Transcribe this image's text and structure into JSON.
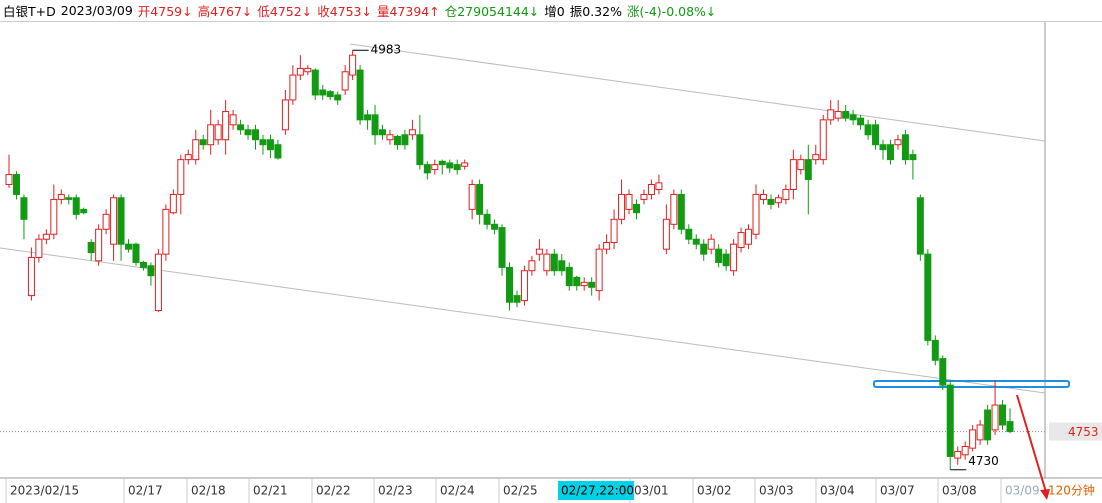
{
  "header": {
    "items": [
      {
        "text": "白银T+D",
        "color": "#000000"
      },
      {
        "text": "2023/03/09",
        "color": "#000000"
      },
      {
        "text": "开4759↓",
        "color": "#e02020"
      },
      {
        "text": "高4767↓",
        "color": "#e02020"
      },
      {
        "text": "低4752↓",
        "color": "#e02020"
      },
      {
        "text": "收4753↓",
        "color": "#e02020"
      },
      {
        "text": "量47394↑",
        "color": "#e02020"
      },
      {
        "text": "仓279054144↓",
        "color": "#129a12"
      },
      {
        "text": "增0",
        "color": "#000000"
      },
      {
        "text": "振0.32%",
        "color": "#000000"
      },
      {
        "text": "涨(-4)-0.08%↓",
        "color": "#129a12"
      }
    ]
  },
  "chart_data": {
    "type": "candlestick",
    "up_color": "#e02020",
    "down_color": "#129a12",
    "ylim": [
      4725,
      5000
    ],
    "x_labels": [
      "2023/02/15",
      "02/17",
      "02/18",
      "02/21",
      "02/22",
      "02/23",
      "02/24",
      "02/25",
      "03/01",
      "03/02",
      "03/03",
      "03/04",
      "03/07",
      "03/08",
      "03/09"
    ],
    "cursor_label": "02/27,22:00",
    "period": "120分钟",
    "high_label": "4983",
    "low_label": "4730",
    "last_price": 4753,
    "open": [
      4902,
      4908,
      4894,
      4835,
      4858,
      4869,
      4872,
      4893,
      4894,
      4894,
      4887,
      4867,
      4856,
      4875,
      4866,
      4894,
      4866,
      4866,
      4855,
      4853,
      4826,
      4860,
      4885,
      4896,
      4917,
      4917,
      4929,
      4926,
      4929,
      4929,
      4938,
      4938,
      4935,
      4935,
      4929,
      4929,
      4926,
      4935,
      4953,
      4968,
      4970,
      4971,
      4959,
      4958,
      4956,
      4959,
      4968,
      4971,
      4944,
      4944,
      4935,
      4929,
      4931,
      4932,
      4932,
      4932,
      4914,
      4911,
      4916,
      4915,
      4914,
      4913,
      4887,
      4902,
      4884,
      4878,
      4876,
      4852,
      4835,
      4832,
      4850,
      4860,
      4850,
      4860,
      4856,
      4852,
      4846,
      4841,
      4843,
      4838,
      4863,
      4867,
      4881,
      4887,
      4890,
      4893,
      4896,
      4899,
      4863,
      4878,
      4896,
      4875,
      4869,
      4866,
      4863,
      4863,
      4860,
      4850,
      4864,
      4866,
      4872,
      4893,
      4893,
      4891,
      4893,
      4899,
      4911,
      4917,
      4917,
      4917,
      4941,
      4942,
      4946,
      4944,
      4942,
      4938,
      4938,
      4926,
      4926,
      4926,
      4932,
      4920,
      4894,
      4860,
      4808,
      4797,
      4781,
      4737,
      4739,
      4743,
      4748,
      4766,
      4754,
      4769,
      4759
    ],
    "high": [
      4920,
      4910,
      4896,
      4864,
      4872,
      4875,
      4902,
      4899,
      4896,
      4896,
      4888,
      4869,
      4878,
      4887,
      4896,
      4896,
      4869,
      4867,
      4856,
      4855,
      4863,
      4890,
      4899,
      4920,
      4923,
      4935,
      4932,
      4947,
      4941,
      4953,
      4947,
      4941,
      4938,
      4938,
      4932,
      4932,
      4929,
      4959,
      4974,
      4980,
      4974,
      4972,
      4962,
      4959,
      4958,
      4974,
      4983,
      4974,
      4947,
      4950,
      4938,
      4935,
      4932,
      4935,
      4941,
      4944,
      4916,
      4917,
      4917,
      4917,
      4917,
      4917,
      4905,
      4905,
      4887,
      4881,
      4878,
      4855,
      4838,
      4853,
      4859,
      4869,
      4863,
      4863,
      4860,
      4855,
      4847,
      4846,
      4846,
      4866,
      4872,
      4887,
      4905,
      4899,
      4893,
      4899,
      4905,
      4908,
      4890,
      4899,
      4899,
      4878,
      4872,
      4869,
      4872,
      4866,
      4863,
      4869,
      4876,
      4878,
      4902,
      4899,
      4896,
      4896,
      4902,
      4923,
      4920,
      4926,
      4926,
      4944,
      4953,
      4953,
      4950,
      4947,
      4944,
      4941,
      4941,
      4929,
      4929,
      4932,
      4935,
      4923,
      4896,
      4863,
      4811,
      4799,
      4784,
      4744,
      4747,
      4757,
      4760,
      4769,
      4784,
      4772,
      4767
    ],
    "low": [
      4900,
      4893,
      4869,
      4832,
      4855,
      4866,
      4869,
      4890,
      4890,
      4881,
      4884,
      4856,
      4853,
      4872,
      4856,
      4856,
      4861,
      4853,
      4850,
      4841,
      4825,
      4856,
      4884,
      4884,
      4914,
      4914,
      4923,
      4920,
      4926,
      4920,
      4935,
      4932,
      4929,
      4923,
      4920,
      4918,
      4917,
      4932,
      4950,
      4965,
      4968,
      4953,
      4953,
      4953,
      4950,
      4956,
      4965,
      4938,
      4935,
      4926,
      4929,
      4926,
      4923,
      4923,
      4929,
      4911,
      4905,
      4908,
      4908,
      4909,
      4908,
      4911,
      4881,
      4878,
      4875,
      4872,
      4847,
      4826,
      4828,
      4829,
      4847,
      4856,
      4847,
      4847,
      4847,
      4838,
      4838,
      4838,
      4835,
      4832,
      4860,
      4863,
      4878,
      4884,
      4881,
      4890,
      4893,
      4896,
      4860,
      4875,
      4872,
      4866,
      4863,
      4856,
      4860,
      4852,
      4850,
      4847,
      4861,
      4863,
      4869,
      4890,
      4887,
      4888,
      4890,
      4893,
      4908,
      4884,
      4914,
      4914,
      4938,
      4940,
      4940,
      4938,
      4935,
      4929,
      4923,
      4917,
      4914,
      4923,
      4914,
      4905,
      4856,
      4805,
      4793,
      4778,
      4730,
      4733,
      4736,
      4741,
      4745,
      4745,
      4751,
      4754,
      4752
    ],
    "close": [
      4908,
      4896,
      4881,
      4858,
      4869,
      4872,
      4893,
      4896,
      4893,
      4884,
      4885,
      4861,
      4875,
      4884,
      4894,
      4866,
      4863,
      4855,
      4852,
      4847,
      4860,
      4887,
      4896,
      4917,
      4920,
      4929,
      4926,
      4938,
      4938,
      4946,
      4944,
      4935,
      4932,
      4929,
      4926,
      4923,
      4918,
      4953,
      4968,
      4972,
      4972,
      4956,
      4956,
      4955,
      4953,
      4970,
      4980,
      4941,
      4941,
      4932,
      4932,
      4932,
      4926,
      4926,
      4935,
      4914,
      4909,
      4914,
      4914,
      4912,
      4911,
      4915,
      4902,
      4884,
      4878,
      4875,
      4852,
      4831,
      4831,
      4850,
      4856,
      4863,
      4860,
      4850,
      4850,
      4841,
      4841,
      4843,
      4840,
      4863,
      4867,
      4881,
      4896,
      4896,
      4885,
      4896,
      4902,
      4903,
      4881,
      4896,
      4875,
      4869,
      4866,
      4860,
      4869,
      4855,
      4853,
      4866,
      4873,
      4875,
      4896,
      4896,
      4890,
      4894,
      4899,
      4917,
      4917,
      4905,
      4920,
      4941,
      4947,
      4946,
      4942,
      4941,
      4938,
      4932,
      4926,
      4923,
      4917,
      4929,
      4917,
      4917,
      4860,
      4808,
      4796,
      4781,
      4738,
      4741,
      4744,
      4754,
      4757,
      4748,
      4769,
      4757,
      4753
    ]
  }
}
